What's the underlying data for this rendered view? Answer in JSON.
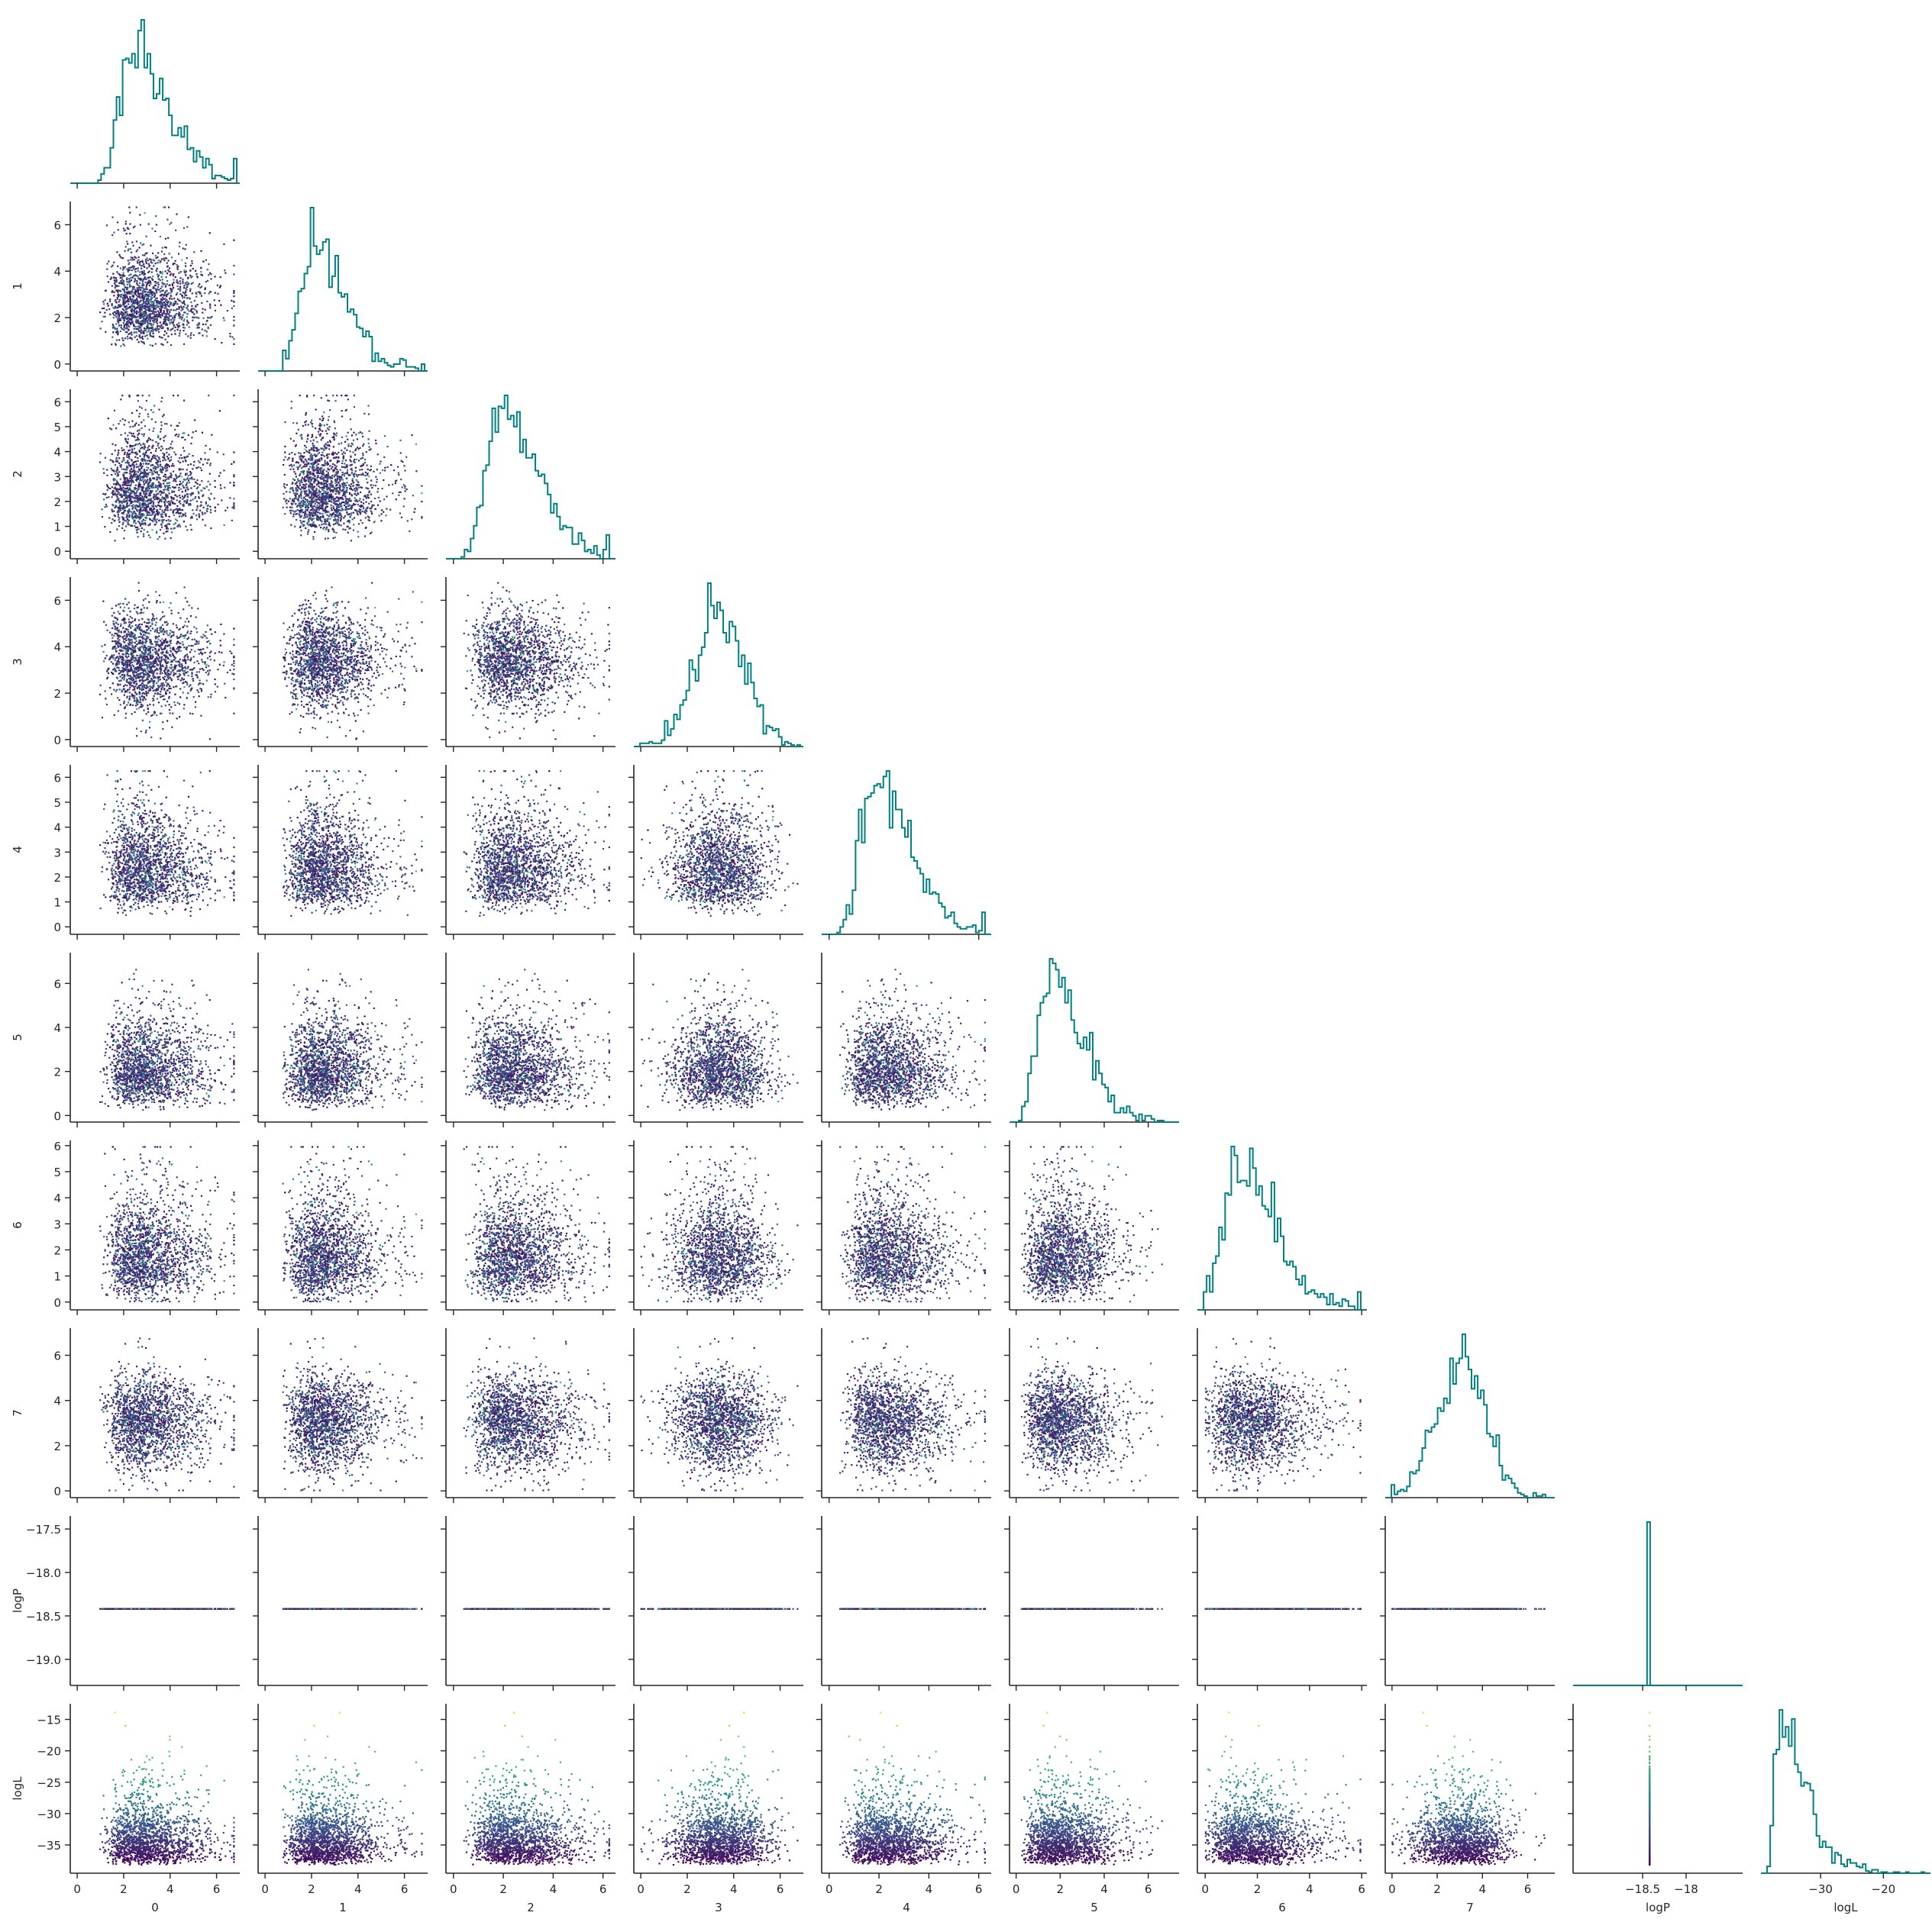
{
  "chart_data": {
    "type": "corner-plot",
    "description_of_marks": "Lower-triangle pair plot: diagonal = step histograms (color teal), off-diagonal = scatter colored by logL (viridis)",
    "variables": [
      "0",
      "1",
      "2",
      "3",
      "4",
      "5",
      "6",
      "7",
      "logP",
      "logL"
    ],
    "axis_labels": [
      "0",
      "1",
      "2",
      "3",
      "4",
      "5",
      "6",
      "7",
      "logP",
      "logL"
    ],
    "histogram_color": "#008080",
    "scatter_colormap": "viridis",
    "ranges": {
      "0": [
        -0.3,
        7.0
      ],
      "1": [
        -0.3,
        7.0
      ],
      "2": [
        -0.3,
        6.5
      ],
      "3": [
        -0.3,
        7.0
      ],
      "4": [
        -0.3,
        6.5
      ],
      "5": [
        -0.3,
        7.4
      ],
      "6": [
        -0.3,
        6.2
      ],
      "7": [
        -0.3,
        7.2
      ],
      "logP": [
        -19.3,
        -17.35
      ],
      "logL": [
        -39.5,
        -12.5
      ]
    },
    "ticks": {
      "0": [
        0,
        2,
        4,
        6
      ],
      "1": [
        0,
        2,
        4,
        6
      ],
      "2": [
        0,
        1,
        2,
        3,
        4,
        5,
        6
      ],
      "3": [
        0,
        2,
        4,
        6
      ],
      "4": [
        0,
        1,
        2,
        3,
        4,
        5,
        6
      ],
      "5": [
        0,
        2,
        4,
        6
      ],
      "6": [
        0,
        1,
        2,
        3,
        4,
        5,
        6
      ],
      "7": [
        0,
        2,
        4,
        6
      ],
      "logP": [
        -19.0,
        -18.5,
        -18.0,
        -17.5
      ],
      "logL": [
        -35,
        -30,
        -25,
        -20,
        -15
      ]
    },
    "x_ticks": {
      "0": [
        0,
        2,
        4,
        6
      ],
      "1": [
        0,
        2,
        4,
        6
      ],
      "2": [
        0,
        2,
        4,
        6
      ],
      "3": [
        0,
        2,
        4,
        6
      ],
      "4": [
        0,
        2,
        4,
        6
      ],
      "5": [
        0,
        2,
        4,
        6
      ],
      "6": [
        0,
        2,
        4,
        6
      ],
      "7": [
        0,
        2,
        4,
        6
      ],
      "logP": [
        -18.5,
        -18.0
      ],
      "logL": [
        -30,
        -20
      ]
    },
    "marginal_modes": {
      "0": 2.7,
      "1": 2.3,
      "2": 2.2,
      "3": 3.6,
      "4": 2.1,
      "5": 1.8,
      "6": 1.5,
      "7": 3.2,
      "logP": -18.42,
      "logL": -37.5
    },
    "logP_constant_value": -18.42,
    "n_samples_approx": 2000
  }
}
